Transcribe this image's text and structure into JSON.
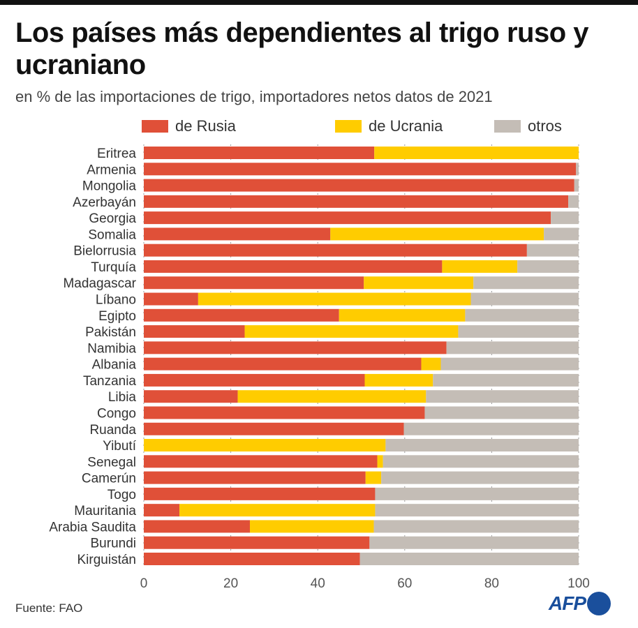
{
  "title": "Los países más dependientes al trigo ruso y ucraniano",
  "subtitle": "en % de las importaciones de trigo, importadores netos datos de 2021",
  "source": "Fuente: FAO",
  "logo": "AFP",
  "colors": {
    "rusia": "#e05038",
    "ucrania": "#ffcc00",
    "otros": "#c4bdb6"
  },
  "chart_data": {
    "type": "bar",
    "orientation": "horizontal",
    "stacked": true,
    "title": "Los países más dependientes al trigo ruso y ucraniano",
    "subtitle": "en % de las importaciones de trigo, importadores netos datos de 2021",
    "xlim": [
      0,
      100
    ],
    "xticks": [
      "0",
      "20",
      "40",
      "60",
      "80",
      "100"
    ],
    "legend_position": "top",
    "grid": false,
    "categories": [
      "Eritrea",
      "Armenia",
      "Mongolia",
      "Azerbayán",
      "Georgia",
      "Somalia",
      "Bielorrusia",
      "Turquía",
      "Madagascar",
      "Líbano",
      "Egipto",
      "Pakistán",
      "Namibia",
      "Albania",
      "Tanzania",
      "Libia",
      "Congo",
      "Ruanda",
      "Yibutí",
      "Senegal",
      "Camerún",
      "Togo",
      "Mauritania",
      "Arabia Saudita",
      "Burundi",
      "Kirguistán"
    ],
    "series": [
      {
        "name": "de Rusia",
        "values": [
          53.0,
          99.4,
          99.0,
          97.6,
          93.6,
          42.9,
          88.1,
          68.6,
          50.6,
          12.5,
          44.9,
          23.2,
          69.6,
          63.8,
          50.8,
          21.6,
          64.6,
          59.8,
          0,
          53.7,
          51.0,
          53.2,
          8.2,
          24.4,
          51.9,
          49.7
        ]
      },
      {
        "name": "de Ucrania",
        "values": [
          47.0,
          0,
          0,
          0,
          0,
          49.1,
          0,
          17.3,
          25.2,
          62.7,
          29.0,
          49.1,
          0,
          4.5,
          15.7,
          43.3,
          0,
          0,
          55.6,
          1.3,
          3.6,
          0,
          45.0,
          28.5,
          0,
          0
        ]
      },
      {
        "name": "otros",
        "values": [
          0,
          0.6,
          1.0,
          2.4,
          6.4,
          8.0,
          11.9,
          14.1,
          24.2,
          24.8,
          26.1,
          27.7,
          30.4,
          31.7,
          33.5,
          35.1,
          35.4,
          40.2,
          44.4,
          45.0,
          45.4,
          46.8,
          46.8,
          47.1,
          48.1,
          50.3
        ]
      }
    ]
  }
}
